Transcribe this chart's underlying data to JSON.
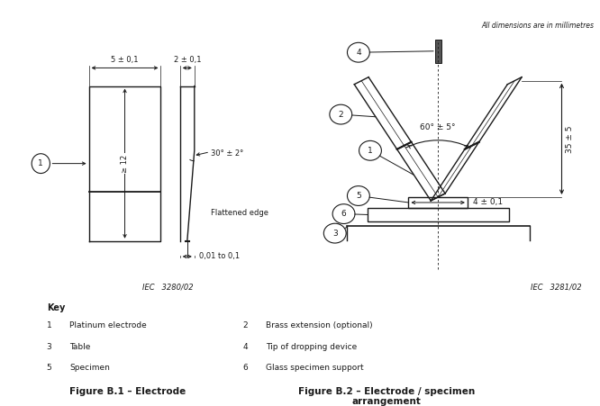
{
  "bg_color": "#ffffff",
  "line_color": "#1a1a1a",
  "title_text": "All dimensions are in millimetres",
  "fig1_label": "Figure B.1 – Electrode",
  "fig2_label": "Figure B.2 – Electrode / specimen\narrangement",
  "key_title": "Key",
  "key_left": [
    "1   Platinum electrode",
    "3   Table",
    "5   Specimen"
  ],
  "key_right": [
    "2   Brass extension (optional)",
    "4   Tip of dropping device",
    "6   Glass specimen support"
  ],
  "iec1": "IEC   3280/02",
  "iec2": "IEC   3281/02",
  "dim_5": "5 ± 0,1",
  "dim_2": "2 ± 0,1",
  "dim_12": "≥ 12",
  "dim_30": "30° ± 2°",
  "dim_flat": "Flattened edge",
  "dim_001": "0,01 to 0,1",
  "dim_60": "60° ± 5°",
  "dim_35": "35 ± 5",
  "dim_4": "4 ± 0,1"
}
